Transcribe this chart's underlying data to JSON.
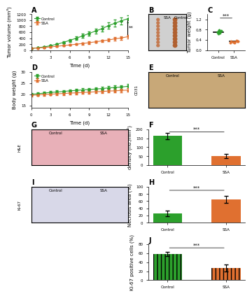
{
  "panel_A": {
    "title": "A",
    "xlabel": "Time (d)",
    "ylabel": "Tumor volume (mm³)",
    "xlim": [
      0,
      15
    ],
    "ylim": [
      0,
      1200
    ],
    "xticks": [
      0,
      3,
      6,
      9,
      12,
      15
    ],
    "yticks": [
      0,
      200,
      400,
      600,
      800,
      1000,
      1200
    ],
    "control_x": [
      0,
      1,
      2,
      3,
      4,
      5,
      6,
      7,
      8,
      9,
      10,
      11,
      12,
      13,
      14,
      15
    ],
    "control_y": [
      60,
      80,
      110,
      150,
      200,
      260,
      330,
      400,
      480,
      560,
      640,
      720,
      820,
      900,
      980,
      1050
    ],
    "control_err": [
      10,
      15,
      20,
      25,
      30,
      40,
      45,
      55,
      65,
      70,
      80,
      90,
      100,
      110,
      115,
      120
    ],
    "ssa_x": [
      0,
      1,
      2,
      3,
      4,
      5,
      6,
      7,
      8,
      9,
      10,
      11,
      12,
      13,
      14,
      15
    ],
    "ssa_y": [
      60,
      75,
      90,
      110,
      130,
      155,
      175,
      200,
      225,
      250,
      280,
      310,
      340,
      380,
      410,
      450
    ],
    "ssa_err": [
      8,
      12,
      15,
      18,
      22,
      25,
      28,
      30,
      35,
      38,
      40,
      45,
      50,
      55,
      60,
      65
    ],
    "control_color": "#2ca02c",
    "ssa_color": "#e07030",
    "significance": "**",
    "legend": [
      "Control",
      "SSA"
    ]
  },
  "panel_C": {
    "title": "C",
    "xlabel": "",
    "ylabel": "Tumor weight (g)",
    "ylim": [
      0,
      1.4
    ],
    "yticks": [
      0.0,
      0.4,
      0.8,
      1.2
    ],
    "categories": [
      "Control",
      "SSA"
    ],
    "control_points": [
      0.72,
      0.68,
      0.78,
      0.65,
      0.7,
      0.74,
      0.69,
      0.75
    ],
    "ssa_points": [
      0.35,
      0.32,
      0.38,
      0.3,
      0.33,
      0.36,
      0.28,
      0.34
    ],
    "control_mean": 0.714,
    "ssa_mean": 0.333,
    "control_color": "#2ca02c",
    "ssa_color": "#e07030",
    "significance": "***"
  },
  "panel_D": {
    "title": "D",
    "xlabel": "Time (d)",
    "ylabel": "Body weight (g)",
    "xlim": [
      0,
      15
    ],
    "ylim": [
      14,
      30
    ],
    "xticks": [
      0,
      3,
      6,
      9,
      12,
      15
    ],
    "yticks": [
      15,
      20,
      25,
      30
    ],
    "control_x": [
      0,
      1,
      2,
      3,
      4,
      5,
      6,
      7,
      8,
      9,
      10,
      11,
      12,
      13,
      14,
      15
    ],
    "control_y": [
      20.0,
      20.2,
      20.5,
      20.8,
      21.0,
      21.2,
      21.5,
      21.7,
      21.9,
      22.1,
      22.3,
      22.5,
      22.8,
      23.0,
      23.2,
      23.5
    ],
    "control_err": [
      0.5,
      0.5,
      0.5,
      0.6,
      0.6,
      0.6,
      0.6,
      0.7,
      0.7,
      0.7,
      0.7,
      0.8,
      0.8,
      0.8,
      0.8,
      0.9
    ],
    "ssa_x": [
      0,
      1,
      2,
      3,
      4,
      5,
      6,
      7,
      8,
      9,
      10,
      11,
      12,
      13,
      14,
      15
    ],
    "ssa_y": [
      19.5,
      19.7,
      19.9,
      20.0,
      20.2,
      20.3,
      20.5,
      20.6,
      20.8,
      20.9,
      21.1,
      21.2,
      21.4,
      21.5,
      21.7,
      21.8
    ],
    "ssa_err": [
      0.5,
      0.5,
      0.5,
      0.5,
      0.5,
      0.6,
      0.6,
      0.6,
      0.6,
      0.7,
      0.7,
      0.7,
      0.7,
      0.8,
      0.8,
      0.8
    ],
    "control_color": "#2ca02c",
    "ssa_color": "#e07030",
    "legend": [
      "Control",
      "SSA"
    ]
  },
  "panel_F": {
    "title": "F",
    "ylabel": "Microvessel\ndensity (no./mm²)",
    "ylim": [
      0,
      200
    ],
    "yticks": [
      0,
      50,
      100,
      150,
      200
    ],
    "control_val": 162,
    "control_err": 18,
    "ssa_val": 52,
    "ssa_err": 12,
    "categories": [
      "Control",
      "SSA"
    ],
    "control_color": "#2ca02c",
    "ssa_color": "#e07030",
    "significance": "***"
  },
  "panel_H": {
    "title": "H",
    "ylabel": "Necrosis area (%)",
    "ylim": [
      0,
      100
    ],
    "yticks": [
      0,
      20,
      40,
      60,
      80,
      100
    ],
    "control_val": 25,
    "control_err": 8,
    "ssa_val": 65,
    "ssa_err": 10,
    "categories": [
      "Control",
      "SSA"
    ],
    "control_color": "#2ca02c",
    "ssa_color": "#e07030",
    "significance": "***"
  },
  "panel_J": {
    "title": "J",
    "ylabel": "Ki-67 positive cells (%)",
    "ylim": [
      0,
      80
    ],
    "yticks": [
      0,
      20,
      40,
      60,
      80
    ],
    "control_val": 58,
    "control_err": 5,
    "ssa_val": 27,
    "ssa_err": 8,
    "categories": [
      "Control",
      "SSA"
    ],
    "control_color": "#2ca02c",
    "ssa_color": "#e07030",
    "significance": "***",
    "hatch": "|||"
  },
  "bg_color": "#ffffff",
  "label_fontsize": 5,
  "tick_fontsize": 4,
  "title_fontsize": 7
}
